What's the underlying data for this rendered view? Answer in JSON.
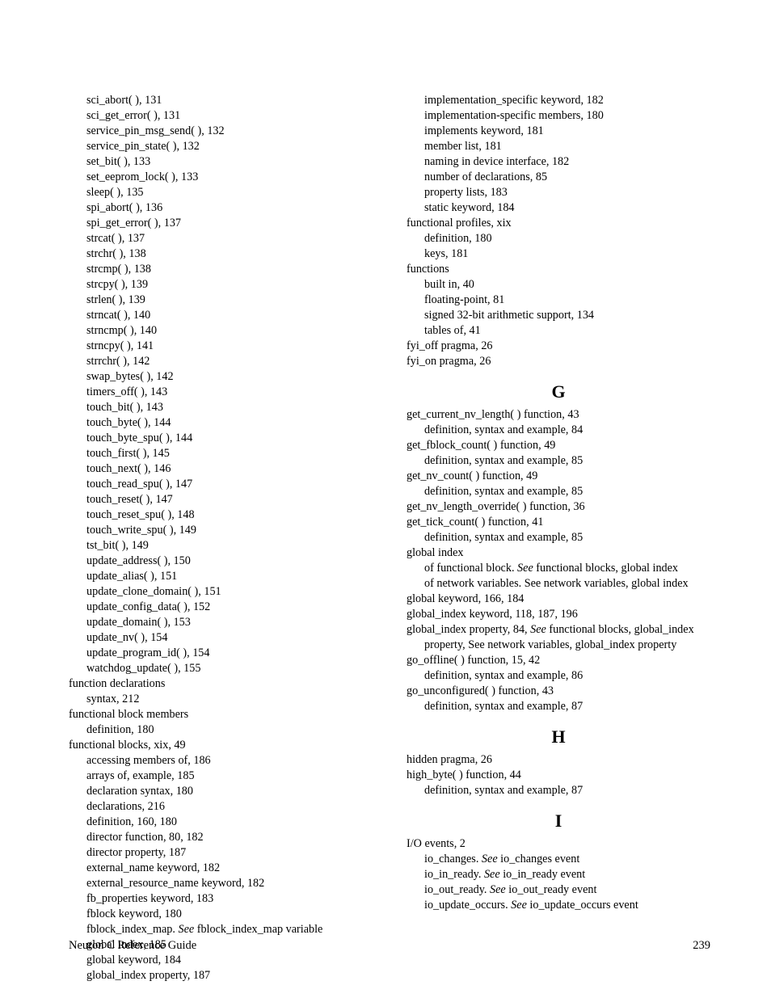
{
  "left": [
    {
      "c": "l1",
      "t": "sci_abort( ), 131"
    },
    {
      "c": "l1",
      "t": "sci_get_error( ), 131"
    },
    {
      "c": "l1",
      "t": "service_pin_msg_send( ), 132"
    },
    {
      "c": "l1",
      "t": "service_pin_state( ), 132"
    },
    {
      "c": "l1",
      "t": "set_bit( ), 133"
    },
    {
      "c": "l1",
      "t": "set_eeprom_lock( ), 133"
    },
    {
      "c": "l1",
      "t": "sleep( ), 135"
    },
    {
      "c": "l1",
      "t": "spi_abort( ), 136"
    },
    {
      "c": "l1",
      "t": "spi_get_error( ), 137"
    },
    {
      "c": "l1",
      "t": "strcat( ), 137"
    },
    {
      "c": "l1",
      "t": "strchr( ), 138"
    },
    {
      "c": "l1",
      "t": "strcmp( ), 138"
    },
    {
      "c": "l1",
      "t": "strcpy( ), 139"
    },
    {
      "c": "l1",
      "t": "strlen( ), 139"
    },
    {
      "c": "l1",
      "t": "strncat( ), 140"
    },
    {
      "c": "l1",
      "t": "strncmp( ), 140"
    },
    {
      "c": "l1",
      "t": "strncpy( ), 141"
    },
    {
      "c": "l1",
      "t": "strrchr( ), 142"
    },
    {
      "c": "l1",
      "t": "swap_bytes( ), 142"
    },
    {
      "c": "l1",
      "t": "timers_off( ), 143"
    },
    {
      "c": "l1",
      "t": "touch_bit( ), 143"
    },
    {
      "c": "l1",
      "t": "touch_byte( ), 144"
    },
    {
      "c": "l1",
      "t": "touch_byte_spu( ), 144"
    },
    {
      "c": "l1",
      "t": "touch_first( ), 145"
    },
    {
      "c": "l1",
      "t": "touch_next( ), 146"
    },
    {
      "c": "l1",
      "t": "touch_read_spu( ), 147"
    },
    {
      "c": "l1",
      "t": "touch_reset( ), 147"
    },
    {
      "c": "l1",
      "t": "touch_reset_spu( ), 148"
    },
    {
      "c": "l1",
      "t": "touch_write_spu( ), 149"
    },
    {
      "c": "l1",
      "t": "tst_bit( ), 149"
    },
    {
      "c": "l1",
      "t": "update_address( ), 150"
    },
    {
      "c": "l1",
      "t": "update_alias( ), 151"
    },
    {
      "c": "l1",
      "t": "update_clone_domain( ), 151"
    },
    {
      "c": "l1",
      "t": "update_config_data( ), 152"
    },
    {
      "c": "l1",
      "t": "update_domain( ), 153"
    },
    {
      "c": "l1",
      "t": "update_nv( ), 154"
    },
    {
      "c": "l1",
      "t": "update_program_id( ), 154"
    },
    {
      "c": "l1",
      "t": "watchdog_update( ), 155"
    },
    {
      "c": "l0",
      "t": "function declarations"
    },
    {
      "c": "l1",
      "t": "syntax, 212"
    },
    {
      "c": "l0",
      "t": "functional block members"
    },
    {
      "c": "l1",
      "t": "definition, 180"
    },
    {
      "c": "l0",
      "t": "functional blocks, xix, 49"
    },
    {
      "c": "l1",
      "t": "accessing members of, 186"
    },
    {
      "c": "l1",
      "t": "arrays of, example, 185"
    },
    {
      "c": "l1",
      "t": "declaration syntax, 180"
    },
    {
      "c": "l1",
      "t": "declarations, 216"
    },
    {
      "c": "l1",
      "t": "definition, 160, 180"
    },
    {
      "c": "l1",
      "t": "director function, 80, 182"
    },
    {
      "c": "l1",
      "t": "director property, 187"
    },
    {
      "c": "l1",
      "t": "external_name keyword, 182"
    },
    {
      "c": "l1",
      "t": "external_resource_name keyword, 182"
    },
    {
      "c": "l1",
      "t": "fb_properties keyword, 183"
    },
    {
      "c": "l1",
      "t": "fblock keyword, 180"
    },
    {
      "c": "wrap1",
      "parts": [
        {
          "t": "fblock_index_map. "
        },
        {
          "t": "See ",
          "i": true
        },
        {
          "t": "fblock_index_map variable"
        }
      ]
    },
    {
      "c": "l1",
      "t": "global index, 185"
    },
    {
      "c": "l1",
      "t": "global keyword, 184"
    },
    {
      "c": "l1",
      "t": "global_index property, 187"
    }
  ],
  "right": [
    {
      "c": "l1",
      "t": "implementation_specific keyword, 182"
    },
    {
      "c": "l1",
      "t": "implementation-specific members, 180"
    },
    {
      "c": "l1",
      "t": "implements keyword, 181"
    },
    {
      "c": "l1",
      "t": "member list, 181"
    },
    {
      "c": "l1",
      "t": "naming in device interface, 182"
    },
    {
      "c": "l1",
      "t": "number of declarations, 85"
    },
    {
      "c": "l1",
      "t": "property lists, 183"
    },
    {
      "c": "l1",
      "t": "static keyword, 184"
    },
    {
      "c": "l0",
      "t": "functional profiles, xix"
    },
    {
      "c": "l1",
      "t": "definition, 180"
    },
    {
      "c": "l1",
      "t": "keys, 181"
    },
    {
      "c": "l0",
      "t": "functions"
    },
    {
      "c": "l1",
      "t": "built in, 40"
    },
    {
      "c": "l1",
      "t": "floating-point, 81"
    },
    {
      "c": "l1",
      "t": "signed 32-bit arithmetic support, 134"
    },
    {
      "c": "l1",
      "t": "tables of, 41"
    },
    {
      "c": "l0",
      "t": "fyi_off pragma, 26"
    },
    {
      "c": "l0",
      "t": "fyi_on pragma, 26"
    },
    {
      "head": "G"
    },
    {
      "c": "l0",
      "t": "get_current_nv_length( ) function, 43"
    },
    {
      "c": "l1",
      "t": "definition, syntax and example, 84"
    },
    {
      "c": "l0",
      "t": "get_fblock_count( ) function, 49"
    },
    {
      "c": "l1",
      "t": "definition, syntax and example, 85"
    },
    {
      "c": "l0",
      "t": "get_nv_count( ) function, 49"
    },
    {
      "c": "l1",
      "t": "definition, syntax and example, 85"
    },
    {
      "c": "l0",
      "t": "get_nv_length_override( ) function, 36"
    },
    {
      "c": "l0",
      "t": "get_tick_count( ) function, 41"
    },
    {
      "c": "l1",
      "t": "definition, syntax and example, 85"
    },
    {
      "c": "l0",
      "t": "global index"
    },
    {
      "c": "wrap1",
      "parts": [
        {
          "t": "of functional block. "
        },
        {
          "t": "See ",
          "i": true
        },
        {
          "t": "functional blocks, global index"
        }
      ]
    },
    {
      "c": "wrap1",
      "parts": [
        {
          "t": "of network variables. See network variables, global index"
        }
      ]
    },
    {
      "c": "l0",
      "t": "global keyword, 166, 184"
    },
    {
      "c": "l0",
      "t": "global_index keyword, 118, 187, 196"
    },
    {
      "c": "wrap1",
      "parts": [
        {
          "t": "global_index property, 84, "
        },
        {
          "t": "See ",
          "i": true
        },
        {
          "t": "functional blocks, global_index property, See network variables, global_index property"
        }
      ],
      "noindent": true
    },
    {
      "c": "l0",
      "t": "go_offline( ) function, 15, 42"
    },
    {
      "c": "l1",
      "t": "definition, syntax and example, 86"
    },
    {
      "c": "l0",
      "t": "go_unconfigured( ) function, 43"
    },
    {
      "c": "l1",
      "t": "definition, syntax and example, 87"
    },
    {
      "head": "H"
    },
    {
      "c": "l0",
      "t": "hidden pragma, 26"
    },
    {
      "c": "l0",
      "t": "high_byte( ) function, 44"
    },
    {
      "c": "l1",
      "t": "definition, syntax and example, 87"
    },
    {
      "head": "I"
    },
    {
      "c": "l0",
      "t": "I/O events, 2"
    },
    {
      "c": "l1",
      "parts": [
        {
          "t": "io_changes. "
        },
        {
          "t": "See ",
          "i": true
        },
        {
          "t": "io_changes event"
        }
      ]
    },
    {
      "c": "l1",
      "parts": [
        {
          "t": "io_in_ready. "
        },
        {
          "t": "See ",
          "i": true
        },
        {
          "t": "io_in_ready event"
        }
      ]
    },
    {
      "c": "l1",
      "parts": [
        {
          "t": "io_out_ready. "
        },
        {
          "t": "See ",
          "i": true
        },
        {
          "t": "io_out_ready event"
        }
      ]
    },
    {
      "c": "wrap1",
      "parts": [
        {
          "t": "io_update_occurs. "
        },
        {
          "t": "See ",
          "i": true
        },
        {
          "t": "io_update_occurs event"
        }
      ]
    }
  ],
  "footer": {
    "title": "Neuron C Reference Guide",
    "page": "239"
  }
}
